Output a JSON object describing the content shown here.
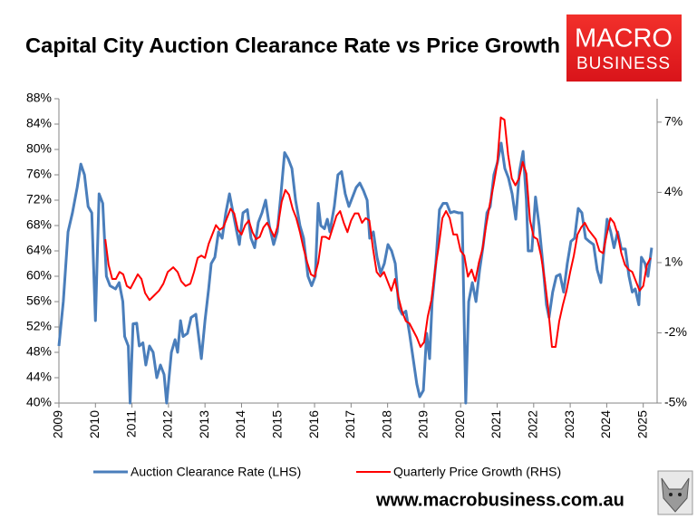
{
  "chart_data": {
    "type": "line",
    "title": "Capital City Auction Clearance Rate vs Price Growth",
    "logo": {
      "line1": "MACRO",
      "line2": "BUSINESS"
    },
    "footer": "www.macrobusiness.com.au",
    "xlim": [
      2009,
      2025.38
    ],
    "xticks": [
      2009,
      2010,
      2011,
      2012,
      2013,
      2014,
      2015,
      2016,
      2017,
      2018,
      2019,
      2020,
      2021,
      2022,
      2023,
      2024,
      2025
    ],
    "ylim": [
      40,
      88
    ],
    "yticks": [
      {
        "value": 40,
        "label": "40%"
      },
      {
        "value": 44,
        "label": "44%"
      },
      {
        "value": 48,
        "label": "48%"
      },
      {
        "value": 52,
        "label": "52%"
      },
      {
        "value": 56,
        "label": "56%"
      },
      {
        "value": 60,
        "label": "60%"
      },
      {
        "value": 64,
        "label": "64%"
      },
      {
        "value": 68,
        "label": "68%"
      },
      {
        "value": 72,
        "label": "72%"
      },
      {
        "value": 76,
        "label": "76%"
      },
      {
        "value": 80,
        "label": "80%"
      },
      {
        "value": 84,
        "label": "84%"
      },
      {
        "value": 88,
        "label": "88%"
      }
    ],
    "y2lim": [
      -5,
      8
    ],
    "y2ticks": [
      {
        "value": -5,
        "label": "-5%"
      },
      {
        "value": -2,
        "label": "-2%"
      },
      {
        "value": 1,
        "label": "1%"
      },
      {
        "value": 4,
        "label": "4%"
      },
      {
        "value": 7,
        "label": "7%"
      }
    ],
    "grid": false,
    "legend": "bottom",
    "series": [
      {
        "name": "Auction Clearance Rate (LHS)",
        "color": "#4a7ebb",
        "x": [
          2009.0,
          2009.12,
          2009.25,
          2009.37,
          2009.5,
          2009.6,
          2009.7,
          2009.8,
          2009.9,
          2010.0,
          2010.1,
          2010.2,
          2010.3,
          2010.4,
          2010.55,
          2010.65,
          2010.75,
          2010.8,
          2010.9,
          2010.95,
          2011.03,
          2011.13,
          2011.2,
          2011.3,
          2011.38,
          2011.48,
          2011.58,
          2011.68,
          2011.78,
          2011.88,
          2011.95,
          2012.08,
          2012.18,
          2012.25,
          2012.33,
          2012.4,
          2012.52,
          2012.62,
          2012.75,
          2012.9,
          2013.0,
          2013.1,
          2013.17,
          2013.27,
          2013.37,
          2013.47,
          2013.57,
          2013.67,
          2013.77,
          2013.87,
          2013.94,
          2014.04,
          2014.16,
          2014.26,
          2014.36,
          2014.46,
          2014.56,
          2014.66,
          2014.76,
          2014.88,
          2014.98,
          2015.08,
          2015.18,
          2015.28,
          2015.38,
          2015.48,
          2015.6,
          2015.7,
          2015.82,
          2015.92,
          2016.02,
          2016.1,
          2016.17,
          2016.27,
          2016.35,
          2016.42,
          2016.54,
          2016.64,
          2016.74,
          2016.84,
          2016.94,
          2017.04,
          2017.14,
          2017.24,
          2017.34,
          2017.44,
          2017.51,
          2017.61,
          2017.71,
          2017.81,
          2017.91,
          2018.01,
          2018.11,
          2018.21,
          2018.31,
          2018.4,
          2018.5,
          2018.6,
          2018.7,
          2018.8,
          2018.88,
          2018.98,
          2019.07,
          2019.15,
          2019.22,
          2019.32,
          2019.42,
          2019.52,
          2019.62,
          2019.72,
          2019.82,
          2019.94,
          2020.04,
          2020.14,
          2020.22,
          2020.32,
          2020.42,
          2020.52,
          2020.62,
          2020.72,
          2020.81,
          2020.91,
          2021.01,
          2021.11,
          2021.21,
          2021.31,
          2021.41,
          2021.51,
          2021.61,
          2021.71,
          2021.8,
          2021.85,
          2021.95,
          2022.05,
          2022.15,
          2022.25,
          2022.35,
          2022.42,
          2022.52,
          2022.62,
          2022.72,
          2022.82,
          2022.92,
          2023.02,
          2023.12,
          2023.22,
          2023.32,
          2023.42,
          2023.52,
          2023.64,
          2023.74,
          2023.84,
          2023.94,
          2024.01,
          2024.11,
          2024.2,
          2024.3,
          2024.4,
          2024.51,
          2024.61,
          2024.7,
          2024.78,
          2024.88,
          2024.95,
          2025.05,
          2025.13,
          2025.23
        ],
        "values": [
          49,
          56,
          67,
          70,
          74,
          77.7,
          76,
          71,
          70,
          53,
          73,
          71.5,
          60,
          58.5,
          58,
          59,
          56,
          50.5,
          49,
          40,
          52.5,
          52.6,
          49,
          49.5,
          46,
          49,
          48,
          44,
          46,
          44.5,
          40,
          48,
          50,
          48,
          53,
          50.5,
          51,
          53.5,
          54,
          47,
          53,
          58,
          62,
          63,
          67,
          66,
          70,
          73,
          70,
          67,
          65,
          70,
          70.5,
          66,
          64.5,
          68.5,
          70,
          72,
          68,
          65,
          67,
          73,
          79.5,
          78.5,
          77,
          72,
          68,
          66,
          60,
          58.5,
          60,
          71.5,
          68,
          67.5,
          69,
          67,
          71,
          76,
          76.5,
          73,
          71,
          72.5,
          74,
          74.7,
          73.5,
          72,
          66,
          67,
          63,
          60.5,
          62,
          65,
          64,
          62,
          55,
          54,
          54.5,
          51,
          47,
          43,
          41,
          42,
          51,
          47,
          56,
          62,
          70.5,
          71.5,
          71.5,
          70,
          70.2,
          70,
          70,
          40,
          56,
          59,
          56,
          61,
          65,
          70,
          71,
          76,
          78,
          81,
          77,
          75.5,
          73,
          69,
          76.5,
          79.7,
          72,
          64,
          64,
          72.5,
          68,
          62,
          55.5,
          53.5,
          57.5,
          60,
          60.3,
          57.5,
          62,
          65.5,
          66,
          70.7,
          70,
          66,
          65.5,
          65,
          61,
          59,
          65,
          69,
          67,
          64.5,
          67,
          64.3,
          64.3,
          60,
          57.5,
          58,
          55.5,
          63,
          62,
          60,
          64.5
        ]
      },
      {
        "name": "Quarterly Price Growth (RHS)",
        "color": "#ff0000",
        "axis": "y2",
        "x": [
          2010.27,
          2010.36,
          2010.46,
          2010.56,
          2010.66,
          2010.76,
          2010.86,
          2010.96,
          2011.06,
          2011.16,
          2011.26,
          2011.36,
          2011.48,
          2011.61,
          2011.74,
          2011.86,
          2011.98,
          2012.13,
          2012.25,
          2012.35,
          2012.47,
          2012.6,
          2012.7,
          2012.8,
          2012.9,
          2013.0,
          2013.1,
          2013.2,
          2013.3,
          2013.4,
          2013.5,
          2013.6,
          2013.7,
          2013.8,
          2013.9,
          2014.0,
          2014.1,
          2014.2,
          2014.3,
          2014.4,
          2014.5,
          2014.6,
          2014.7,
          2014.8,
          2014.9,
          2015.0,
          2015.1,
          2015.2,
          2015.3,
          2015.4,
          2015.5,
          2015.6,
          2015.7,
          2015.8,
          2015.9,
          2016.0,
          2016.1,
          2016.2,
          2016.3,
          2016.4,
          2016.5,
          2016.6,
          2016.7,
          2016.8,
          2016.9,
          2017.0,
          2017.1,
          2017.2,
          2017.3,
          2017.4,
          2017.5,
          2017.6,
          2017.7,
          2017.8,
          2017.9,
          2018.0,
          2018.1,
          2018.2,
          2018.3,
          2018.4,
          2018.5,
          2018.6,
          2018.7,
          2018.8,
          2018.9,
          2019.0,
          2019.1,
          2019.2,
          2019.3,
          2019.4,
          2019.5,
          2019.6,
          2019.7,
          2019.8,
          2019.9,
          2020.0,
          2020.1,
          2020.2,
          2020.3,
          2020.4,
          2020.5,
          2020.6,
          2020.7,
          2020.8,
          2020.9,
          2021.0,
          2021.1,
          2021.2,
          2021.3,
          2021.4,
          2021.5,
          2021.6,
          2021.7,
          2021.8,
          2021.9,
          2022.0,
          2022.1,
          2022.2,
          2022.3,
          2022.4,
          2022.5,
          2022.6,
          2022.7,
          2022.8,
          2022.9,
          2023.0,
          2023.1,
          2023.2,
          2023.3,
          2023.4,
          2023.5,
          2023.6,
          2023.7,
          2023.8,
          2023.9,
          2024.0,
          2024.1,
          2024.2,
          2024.3,
          2024.4,
          2024.5,
          2024.6,
          2024.7,
          2024.8,
          2024.9,
          2025.0,
          2025.1,
          2025.2
        ],
        "values": [
          2.0,
          0.9,
          0.3,
          0.3,
          0.6,
          0.5,
          0.0,
          -0.1,
          0.2,
          0.5,
          0.3,
          -0.3,
          -0.6,
          -0.4,
          -0.2,
          0.1,
          0.6,
          0.8,
          0.6,
          0.2,
          0.0,
          0.1,
          0.6,
          1.2,
          1.3,
          1.2,
          1.8,
          2.2,
          2.6,
          2.4,
          2.5,
          2.9,
          3.3,
          3.1,
          2.4,
          2.2,
          2.6,
          2.8,
          2.3,
          2.0,
          2.1,
          2.5,
          2.7,
          2.4,
          2.1,
          2.6,
          3.6,
          4.1,
          3.9,
          3.3,
          2.9,
          2.3,
          1.6,
          1.0,
          0.5,
          0.4,
          1.0,
          2.1,
          2.1,
          2.0,
          2.5,
          3.0,
          3.2,
          2.7,
          2.3,
          2.8,
          3.1,
          3.1,
          2.7,
          2.9,
          2.8,
          1.6,
          0.6,
          0.4,
          0.6,
          0.2,
          -0.2,
          0.3,
          -0.5,
          -1.1,
          -1.5,
          -1.6,
          -1.9,
          -2.2,
          -2.6,
          -2.4,
          -1.3,
          -0.6,
          0.7,
          1.7,
          2.9,
          3.2,
          2.9,
          2.2,
          2.2,
          1.5,
          1.3,
          0.4,
          0.7,
          0.2,
          1.0,
          1.6,
          2.6,
          3.5,
          4.3,
          5.2,
          7.2,
          7.1,
          5.6,
          4.6,
          4.3,
          4.6,
          5.3,
          4.8,
          2.8,
          2.1,
          2.0,
          1.3,
          0.3,
          -1.0,
          -2.6,
          -2.6,
          -1.5,
          -0.8,
          -0.2,
          0.6,
          1.3,
          2.2,
          2.5,
          2.7,
          2.4,
          2.2,
          2.0,
          1.5,
          1.4,
          2.2,
          2.9,
          2.7,
          2.2,
          1.4,
          0.9,
          0.7,
          0.6,
          0.2,
          -0.2,
          0.0,
          0.9,
          1.2
        ]
      }
    ]
  }
}
